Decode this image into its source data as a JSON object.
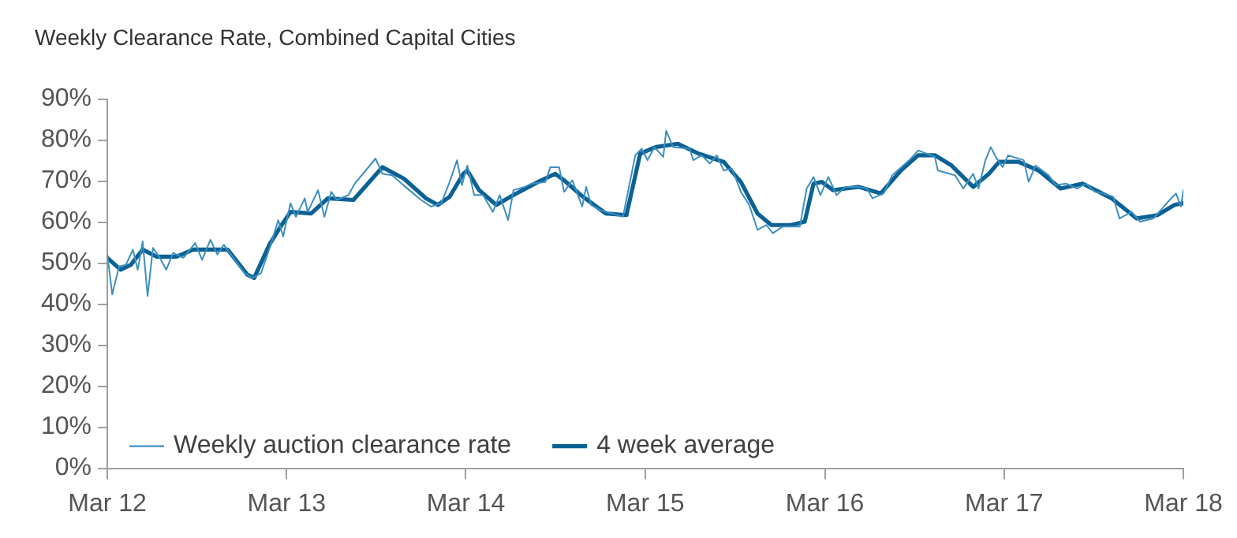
{
  "chart_data": {
    "type": "line",
    "title": "Weekly Clearance Rate, Combined Capital Cities",
    "xlim": [
      "2012-03-01",
      "2018-03-01"
    ],
    "xticks": [
      {
        "value": "2012-03-01",
        "label": "Mar 12"
      },
      {
        "value": "2013-03-01",
        "label": "Mar 13"
      },
      {
        "value": "2014-03-01",
        "label": "Mar 14"
      },
      {
        "value": "2015-03-01",
        "label": "Mar 15"
      },
      {
        "value": "2016-03-01",
        "label": "Mar 16"
      },
      {
        "value": "2017-03-01",
        "label": "Mar 17"
      },
      {
        "value": "2018-03-01",
        "label": "Mar 18"
      }
    ],
    "ylim": [
      0,
      90
    ],
    "yticks": [
      {
        "value": 0,
        "label": "0%"
      },
      {
        "value": 10,
        "label": "10%"
      },
      {
        "value": 20,
        "label": "20%"
      },
      {
        "value": 30,
        "label": "30%"
      },
      {
        "value": 40,
        "label": "40%"
      },
      {
        "value": 50,
        "label": "50%"
      },
      {
        "value": 60,
        "label": "60%"
      },
      {
        "value": 70,
        "label": "70%"
      },
      {
        "value": 80,
        "label": "80%"
      },
      {
        "value": 90,
        "label": "90%"
      }
    ],
    "grid": false,
    "legend": "bottom left",
    "marker": "none",
    "series": [
      {
        "name": "Weekly auction clearance rate",
        "color": "#3d8fc0",
        "line_style": "solid",
        "x": [
          "2012-03-01",
          "2012-03-11",
          "2012-03-25",
          "2012-04-08",
          "2012-04-22",
          "2012-05-02",
          "2012-05-12",
          "2012-05-22",
          "2012-06-02",
          "2012-06-16",
          "2012-06-29",
          "2012-07-13",
          "2012-08-03",
          "2012-08-27",
          "2012-09-10",
          "2012-09-27",
          "2012-10-11",
          "2012-10-24",
          "2012-11-18",
          "2012-12-05",
          "2012-12-22",
          "2013-01-08",
          "2013-01-29",
          "2013-02-12",
          "2013-02-22",
          "2013-03-09",
          "2013-03-20",
          "2013-04-07",
          "2013-04-13",
          "2013-05-04",
          "2013-05-17",
          "2013-05-31",
          "2013-06-11",
          "2013-07-05",
          "2013-07-18",
          "2013-08-12",
          "2013-08-29",
          "2013-09-12",
          "2013-10-02",
          "2013-10-29",
          "2013-11-30",
          "2013-12-20",
          "2014-01-10",
          "2014-01-27",
          "2014-02-11",
          "2014-02-21",
          "2014-03-04",
          "2014-03-18",
          "2014-04-05",
          "2014-04-25",
          "2014-05-09",
          "2014-05-26",
          "2014-06-06",
          "2014-06-29",
          "2014-07-13",
          "2014-08-10",
          "2014-08-20",
          "2014-09-07",
          "2014-09-17",
          "2014-10-04",
          "2014-10-24",
          "2014-11-01",
          "2014-11-11",
          "2014-12-01",
          "2015-01-15",
          "2015-02-09",
          "2015-02-22",
          "2015-03-06",
          "2015-03-20",
          "2015-04-07",
          "2015-04-13",
          "2015-04-27",
          "2015-05-31",
          "2015-06-07",
          "2015-06-24",
          "2015-07-11",
          "2015-07-25",
          "2015-08-08",
          "2015-08-25",
          "2015-09-12",
          "2015-09-29",
          "2015-10-16",
          "2015-11-03",
          "2015-11-16",
          "2015-12-06",
          "2016-01-10",
          "2016-01-24",
          "2016-02-07",
          "2016-02-21",
          "2016-03-08",
          "2016-03-25",
          "2016-04-12",
          "2016-05-09",
          "2016-05-26",
          "2016-06-06",
          "2016-06-29",
          "2016-07-16",
          "2016-08-20",
          "2016-09-07",
          "2016-10-11",
          "2016-10-17",
          "2016-11-21",
          "2016-12-08",
          "2016-12-28",
          "2017-01-08",
          "2017-01-22",
          "2017-02-02",
          "2017-02-12",
          "2017-02-26",
          "2017-03-09",
          "2017-04-10",
          "2017-04-20",
          "2017-05-04",
          "2017-05-31",
          "2017-06-14",
          "2017-07-05",
          "2017-07-28",
          "2017-08-15",
          "2017-09-02",
          "2017-09-19",
          "2017-10-09",
          "2017-10-22",
          "2017-11-16",
          "2017-12-03",
          "2017-12-30",
          "2018-02-04",
          "2018-02-14",
          "2018-02-24",
          "2018-03-01"
        ],
        "values": [
          52.1,
          42.4,
          49.2,
          49.6,
          53.3,
          48.4,
          55.3,
          42.0,
          53.7,
          51.3,
          48.4,
          52.5,
          51.3,
          54.9,
          50.8,
          55.7,
          52.1,
          54.5,
          50.4,
          47.6,
          46.4,
          47.6,
          54.9,
          60.5,
          56.5,
          64.6,
          61.3,
          65.8,
          62.5,
          67.8,
          61.3,
          67.4,
          65.4,
          66.6,
          69.4,
          73.0,
          75.5,
          71.8,
          71.4,
          68.6,
          65.4,
          63.8,
          64.6,
          69.8,
          75.1,
          69.0,
          73.8,
          66.6,
          66.6,
          62.5,
          66.6,
          60.5,
          67.8,
          68.6,
          69.4,
          69.8,
          73.4,
          73.4,
          67.4,
          70.2,
          63.8,
          68.6,
          64.2,
          62.9,
          61.3,
          76.3,
          77.9,
          75.1,
          78.3,
          75.9,
          82.3,
          78.3,
          77.9,
          75.1,
          76.3,
          74.3,
          76.3,
          72.6,
          73.0,
          67.4,
          64.2,
          58.1,
          59.3,
          57.3,
          58.9,
          58.9,
          68.2,
          71.0,
          66.6,
          71.0,
          66.6,
          68.6,
          68.6,
          68.2,
          65.8,
          67.0,
          71.4,
          75.1,
          77.5,
          75.9,
          72.6,
          71.4,
          68.2,
          71.8,
          68.2,
          75.1,
          78.3,
          75.9,
          73.4,
          76.3,
          75.1,
          69.8,
          73.8,
          71.4,
          69.0,
          69.4,
          68.2,
          69.4,
          67.4,
          67.0,
          66.2,
          60.9,
          62.5,
          60.1,
          60.9,
          65.8,
          67.0,
          63.8,
          67.8
        ]
      },
      {
        "name": "4 week average",
        "color": "#0b6194",
        "line_style": "solid",
        "x": [
          "2012-03-01",
          "2012-03-28",
          "2012-04-18",
          "2012-05-12",
          "2012-06-09",
          "2012-07-20",
          "2012-08-23",
          "2012-09-27",
          "2012-11-01",
          "2012-12-11",
          "2012-12-25",
          "2013-01-25",
          "2013-02-19",
          "2013-03-09",
          "2013-04-20",
          "2013-05-24",
          "2013-07-15",
          "2013-09-12",
          "2013-10-26",
          "2013-12-10",
          "2014-01-03",
          "2014-01-27",
          "2014-02-24",
          "2014-03-04",
          "2014-03-28",
          "2014-05-02",
          "2014-06-06",
          "2014-07-26",
          "2014-08-30",
          "2014-09-17",
          "2014-10-21",
          "2014-12-11",
          "2015-01-22",
          "2015-02-19",
          "2015-03-23",
          "2015-05-07",
          "2015-06-18",
          "2015-08-08",
          "2015-09-12",
          "2015-10-16",
          "2015-11-13",
          "2015-12-23",
          "2016-01-20",
          "2016-02-07",
          "2016-02-24",
          "2016-03-18",
          "2016-05-09",
          "2016-06-23",
          "2016-08-03",
          "2016-09-07",
          "2016-10-11",
          "2016-11-14",
          "2016-12-28",
          "2017-01-29",
          "2017-02-19",
          "2017-03-30",
          "2017-05-10",
          "2017-06-24",
          "2017-08-08",
          "2017-10-06",
          "2017-11-26",
          "2018-01-07",
          "2018-02-11",
          "2018-03-01"
        ],
        "values": [
          51.3,
          48.4,
          49.6,
          53.3,
          51.6,
          51.6,
          53.3,
          53.3,
          53.3,
          47.2,
          46.4,
          54.5,
          59.3,
          62.5,
          62.1,
          65.8,
          65.4,
          73.4,
          70.6,
          65.8,
          64.2,
          66.2,
          71.8,
          72.6,
          67.8,
          64.2,
          66.6,
          69.8,
          71.8,
          70.2,
          66.6,
          62.1,
          61.7,
          76.7,
          78.3,
          79.1,
          76.7,
          74.7,
          69.8,
          62.1,
          59.3,
          59.3,
          60.1,
          69.4,
          69.8,
          67.8,
          68.6,
          67.0,
          72.6,
          76.3,
          76.3,
          73.8,
          68.6,
          71.8,
          74.7,
          74.7,
          72.6,
          68.2,
          69.4,
          65.8,
          60.9,
          61.7,
          64.2,
          64.6
        ]
      }
    ]
  }
}
